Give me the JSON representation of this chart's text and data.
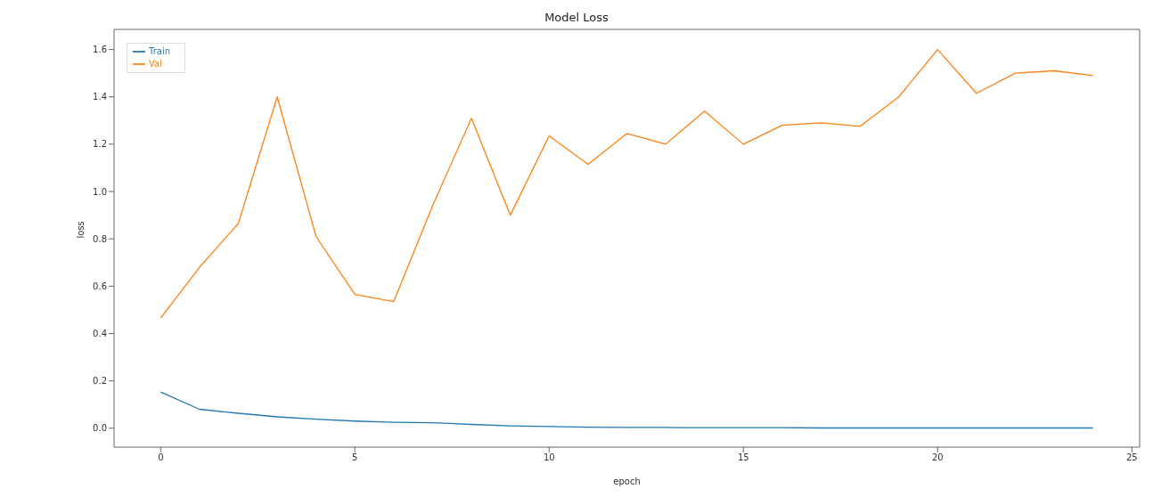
{
  "chart_data": {
    "type": "line",
    "title": "Model Loss",
    "xlabel": "epoch",
    "ylabel": "loss",
    "x": [
      0,
      1,
      2,
      3,
      4,
      5,
      6,
      7,
      8,
      9,
      10,
      11,
      12,
      13,
      14,
      15,
      16,
      17,
      18,
      19,
      20,
      21,
      22,
      23,
      24
    ],
    "series": [
      {
        "name": "Train",
        "color": "#1f77b4",
        "values": [
          0.153,
          0.08,
          0.063,
          0.048,
          0.038,
          0.03,
          0.025,
          0.023,
          0.016,
          0.01,
          0.007,
          0.004,
          0.003,
          0.003,
          0.002,
          0.002,
          0.002,
          0.001,
          0.001,
          0.001,
          0.001,
          0.001,
          0.001,
          0.001,
          0.001
        ]
      },
      {
        "name": "Val",
        "color": "#ff7f0e",
        "values": [
          0.465,
          0.68,
          0.865,
          1.4,
          0.81,
          0.565,
          0.535,
          0.94,
          1.31,
          0.9,
          1.235,
          1.115,
          1.245,
          1.2,
          1.34,
          1.2,
          1.28,
          1.29,
          1.275,
          1.4,
          1.6,
          1.415,
          1.5,
          1.51,
          1.49
        ]
      }
    ],
    "xlim": [
      -1.2,
      25.2
    ],
    "xticks": [
      0,
      5,
      10,
      15,
      20,
      25
    ],
    "ylim": [
      -0.08,
      1.685
    ],
    "yticks": [
      {
        "value": 0,
        "label": "0.0"
      },
      {
        "value": 0.2,
        "label": "0.2"
      },
      {
        "value": 0.4,
        "label": "0.4"
      },
      {
        "value": 0.6,
        "label": "0.6"
      },
      {
        "value": 0.8,
        "label": "0.8"
      },
      {
        "value": 1.0,
        "label": "1.0"
      },
      {
        "value": 1.2,
        "label": "1.2"
      },
      {
        "value": 1.4,
        "label": "1.4"
      },
      {
        "value": 1.6,
        "label": "1.6"
      }
    ],
    "legend": "top left",
    "grid": false,
    "marker": "none",
    "line_style": "solid"
  }
}
